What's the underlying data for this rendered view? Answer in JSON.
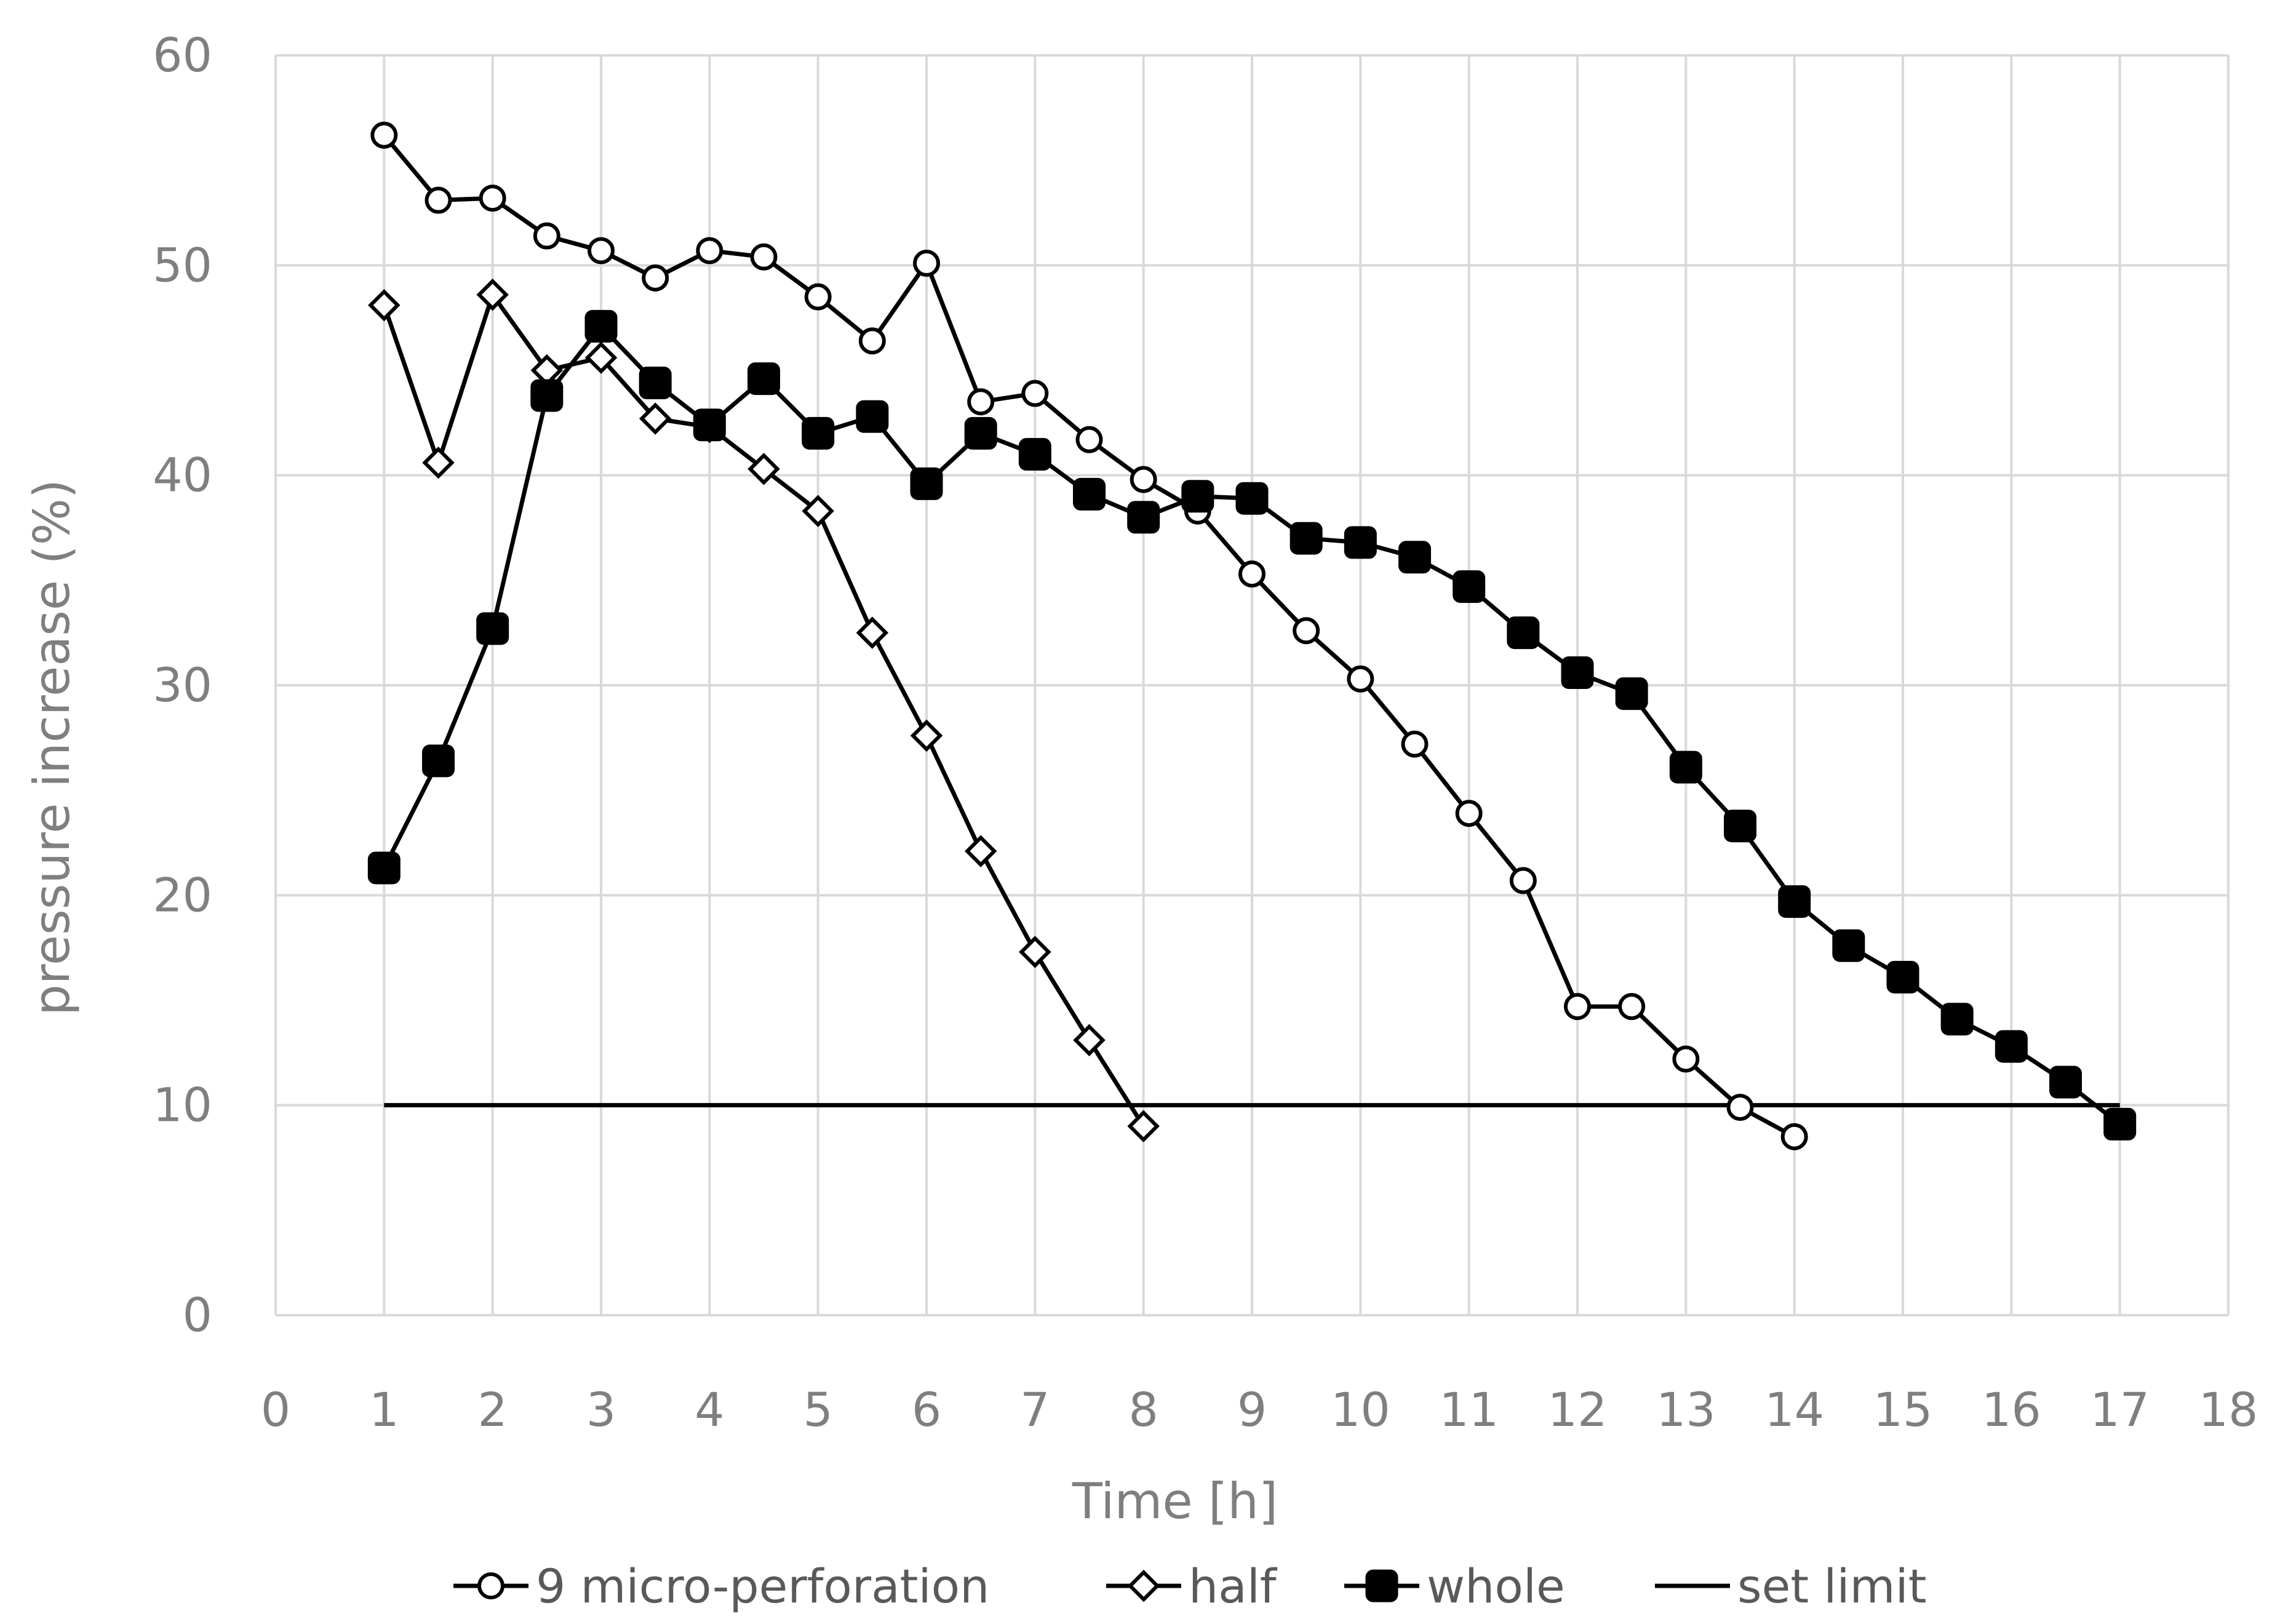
{
  "chart_data": {
    "type": "line",
    "title": "",
    "xlabel": "Time [h]",
    "ylabel": "pressure increase (%)",
    "xlim": [
      0,
      18
    ],
    "ylim": [
      0,
      60
    ],
    "x_ticks": [
      "0",
      "1",
      "2",
      "3",
      "4",
      "5",
      "6",
      "7",
      "8",
      "9",
      "10",
      "11",
      "12",
      "13",
      "14",
      "15",
      "16",
      "17",
      "18"
    ],
    "y_ticks": [
      "0",
      "10",
      "20",
      "30",
      "40",
      "50",
      "60"
    ],
    "grid": true,
    "legend_position": "bottom",
    "series": [
      {
        "name": "9 micro-perforation",
        "marker": "circle-open",
        "x": [
          1,
          1.5,
          2,
          2.5,
          3,
          3.5,
          4,
          4.5,
          5,
          5.5,
          6,
          6.5,
          7,
          7.5,
          8,
          8.5,
          9,
          9.5,
          10,
          10.5,
          11,
          11.5,
          12,
          12.5,
          13,
          13.5,
          14
        ],
        "y": [
          56.2,
          53.1,
          53.2,
          51.4,
          50.7,
          49.4,
          50.7,
          50.4,
          48.5,
          46.4,
          50.1,
          43.5,
          43.9,
          41.7,
          39.8,
          38.3,
          35.3,
          32.6,
          30.3,
          27.2,
          23.9,
          20.7,
          14.7,
          14.7,
          12.2,
          9.9,
          8.5
        ]
      },
      {
        "name": "half",
        "marker": "diamond-open",
        "x": [
          1,
          1.5,
          2,
          2.5,
          3,
          3.5,
          4,
          4.5,
          5,
          5.5,
          6,
          6.5,
          7,
          7.5,
          8
        ],
        "y": [
          48.1,
          40.6,
          48.6,
          45.0,
          45.6,
          42.7,
          42.3,
          40.3,
          38.3,
          32.5,
          27.6,
          22.1,
          17.3,
          13.1,
          9.0
        ]
      },
      {
        "name": "whole",
        "marker": "square-filled",
        "x": [
          1,
          1.5,
          2,
          2.5,
          3,
          3.5,
          4,
          4.5,
          5,
          5.5,
          6,
          6.5,
          7,
          7.5,
          8,
          8.5,
          9,
          9.5,
          10,
          10.5,
          11,
          11.5,
          12,
          12.5,
          13,
          13.5,
          14,
          14.5,
          15,
          15.5,
          16,
          16.5,
          17
        ],
        "y": [
          21.3,
          26.4,
          32.7,
          43.8,
          47.1,
          44.4,
          42.4,
          44.6,
          42.0,
          42.8,
          39.6,
          42.0,
          41.0,
          39.1,
          38.0,
          39.0,
          38.9,
          37.0,
          36.8,
          36.1,
          34.7,
          32.5,
          30.6,
          29.6,
          26.1,
          23.3,
          19.7,
          17.6,
          16.1,
          14.1,
          12.8,
          11.1,
          9.1
        ]
      },
      {
        "name": "set limit",
        "marker": "none",
        "x": [
          1,
          17
        ],
        "y": [
          10,
          10
        ]
      }
    ]
  }
}
